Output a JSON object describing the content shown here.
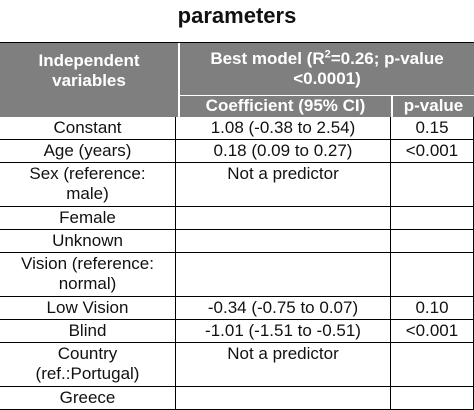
{
  "title": "parameters",
  "header": {
    "independent": [
      "Independent",
      "variables"
    ],
    "best_model_prefix": "Best model (R",
    "best_model_sup": "2",
    "best_model_suffix": "=0.26; p-value",
    "best_model_line2": "<0.0001)",
    "coefficient": "Coefficient (95% CI)",
    "pvalue": "p-value"
  },
  "rows": [
    {
      "label": [
        "Constant"
      ],
      "coef": "1.08 (-0.38 to 2.54)",
      "p": "0.15"
    },
    {
      "label": [
        "Age (years)"
      ],
      "coef": "0.18 (0.09 to 0.27)",
      "p": "<0.001"
    },
    {
      "label": [
        "Sex (reference:",
        "male)"
      ],
      "coef": "Not a predictor",
      "p": ""
    },
    {
      "label": [
        "Female"
      ],
      "coef": "",
      "p": ""
    },
    {
      "label": [
        "Unknown"
      ],
      "coef": "",
      "p": ""
    },
    {
      "label": [
        "Vision (reference:",
        "normal)"
      ],
      "coef": "",
      "p": ""
    },
    {
      "label": [
        "Low Vision"
      ],
      "coef": "-0.34 (-0.75 to 0.07)",
      "p": "0.10"
    },
    {
      "label": [
        "Blind"
      ],
      "coef": "-1.01 (-1.51 to -0.51)",
      "p": "<0.001"
    },
    {
      "label": [
        "Country",
        "(ref.:Portugal)"
      ],
      "coef": "Not a predictor",
      "p": ""
    },
    {
      "label": [
        "Greece"
      ],
      "coef": "",
      "p": ""
    }
  ]
}
